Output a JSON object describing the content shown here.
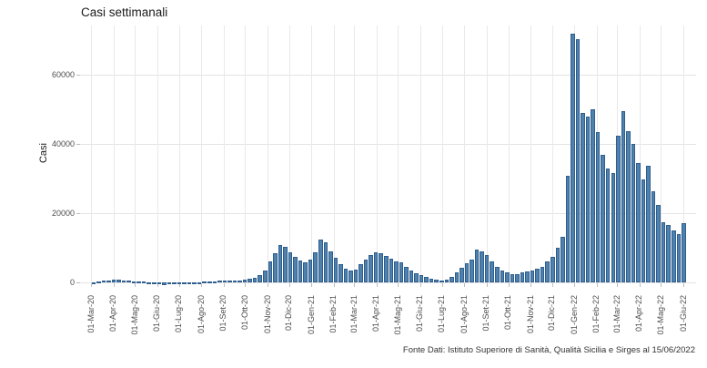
{
  "chart_data": {
    "type": "bar",
    "title": "Casi settimanali",
    "ylabel": "Casi",
    "xlabel": "",
    "caption": "Fonte Dati: Istituto Superiore di Sanità, Qualità Sicilia e Sirges al 15/06/2022",
    "legend_position": "none",
    "grid": true,
    "bar_fill": "#4f81ad",
    "bar_stroke": "#2f5e8f",
    "gridline_color": "#e6e6e6",
    "y_ticks": [
      0,
      20000,
      40000,
      60000
    ],
    "ylim": [
      -1500,
      72500
    ],
    "bar_unit": "week",
    "x_ticks": [
      {
        "label": "01-Mar-20",
        "day": 0
      },
      {
        "label": "01-Apr-20",
        "day": 31
      },
      {
        "label": "01-Mag-20",
        "day": 61
      },
      {
        "label": "01-Giu-20",
        "day": 92
      },
      {
        "label": "01-Lug-20",
        "day": 122
      },
      {
        "label": "01-Ago-20",
        "day": 153
      },
      {
        "label": "01-Set-20",
        "day": 184
      },
      {
        "label": "01-Ott-20",
        "day": 214
      },
      {
        "label": "01-Nov-20",
        "day": 245
      },
      {
        "label": "01-Dic-20",
        "day": 275
      },
      {
        "label": "01-Gen-21",
        "day": 306
      },
      {
        "label": "01-Feb-21",
        "day": 337
      },
      {
        "label": "01-Mar-21",
        "day": 365
      },
      {
        "label": "01-Apr-21",
        "day": 396
      },
      {
        "label": "01-Mag-21",
        "day": 426
      },
      {
        "label": "01-Giu-21",
        "day": 457
      },
      {
        "label": "01-Lug-21",
        "day": 487
      },
      {
        "label": "01-Ago-21",
        "day": 518
      },
      {
        "label": "01-Set-21",
        "day": 549
      },
      {
        "label": "01-Ott-21",
        "day": 579
      },
      {
        "label": "01-Nov-21",
        "day": 610
      },
      {
        "label": "01-Dic-21",
        "day": 640
      },
      {
        "label": "01-Gen-22",
        "day": 671
      },
      {
        "label": "01-Feb-22",
        "day": 702
      },
      {
        "label": "01-Mar-22",
        "day": 730
      },
      {
        "label": "01-Apr-22",
        "day": 761
      },
      {
        "label": "01-Mag-22",
        "day": 791
      },
      {
        "label": "01-Giu-22",
        "day": 822
      }
    ],
    "x_total_days": 840,
    "weekly_values": [
      50,
      250,
      500,
      650,
      800,
      700,
      600,
      450,
      350,
      250,
      180,
      120,
      90,
      60,
      -700,
      40,
      30,
      35,
      45,
      60,
      80,
      110,
      150,
      220,
      300,
      400,
      480,
      520,
      560,
      620,
      750,
      950,
      1400,
      2200,
      3500,
      6000,
      8500,
      10800,
      10200,
      8800,
      7500,
      6300,
      5800,
      6500,
      8800,
      12400,
      11500,
      9000,
      7000,
      5300,
      4000,
      3500,
      3800,
      5300,
      6500,
      7800,
      8700,
      8400,
      7600,
      6800,
      6000,
      5800,
      4400,
      3500,
      2600,
      2200,
      1600,
      1100,
      800,
      600,
      800,
      1500,
      2800,
      4200,
      5500,
      6600,
      9500,
      9000,
      8000,
      6100,
      4400,
      3400,
      2900,
      2300,
      2500,
      2800,
      3100,
      3500,
      4000,
      4600,
      6100,
      7400,
      10000,
      13200,
      30700,
      71800,
      70300,
      48900,
      47800,
      50000,
      43400,
      36800,
      32900,
      31600,
      42500,
      49500,
      43800,
      39900,
      34600,
      29800,
      33800,
      26300,
      22400,
      17500,
      16700,
      14900,
      14000,
      17100
    ]
  }
}
